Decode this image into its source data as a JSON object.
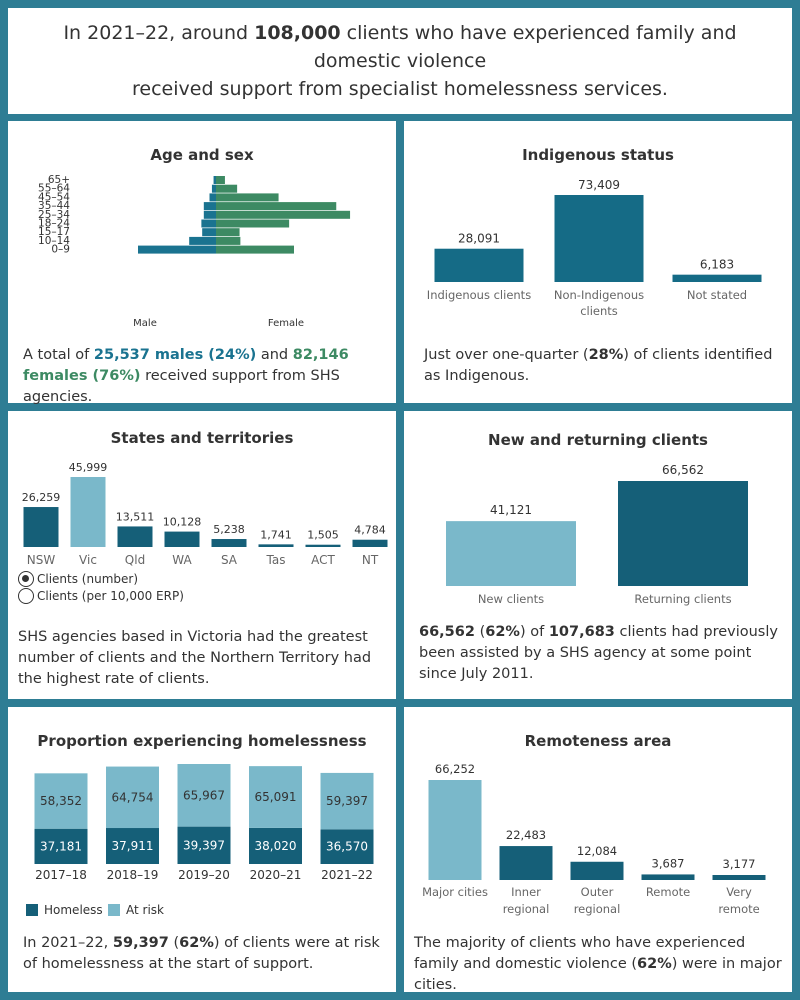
{
  "header": {
    "p1": "In 2021–22, around ",
    "num": "108,000",
    "p2": " clients who have experienced family and domestic violence",
    "line2": "received support from specialist homelessness services."
  },
  "colors": {
    "male": "#1a7390",
    "female": "#3d8a63",
    "primary": "#156b86",
    "dark": "#155f78",
    "light": "#7ab8ca",
    "text": "#333333",
    "grey": "#666666"
  },
  "panels": {
    "age_sex": {
      "title": "Age and sex",
      "caption": {
        "p1": "A total of ",
        "males": "25,537 males (24%)",
        "p2": " and ",
        "females": "82,146 females (76%)",
        "p3": " received support from SHS agencies."
      }
    },
    "indigenous": {
      "title": "Indigenous status",
      "caption": {
        "p1": "Just over one-quarter (",
        "b1": "28%",
        "p2": ") of clients identified as Indigenous."
      }
    },
    "states": {
      "title": "States and territories",
      "radio": {
        "opt1": "Clients (number)",
        "opt2": "Clients (per 10,000 ERP)",
        "selected": "Clients (number)"
      },
      "caption": "SHS agencies based in Victoria had the greatest number of clients and the Northern Territory had the highest rate of clients."
    },
    "new_returning": {
      "title": "New and returning clients",
      "caption": {
        "b1": "66,562",
        "p1": " (",
        "b2": "62%",
        "p2": ") of ",
        "b3": "107,683",
        "p3": " clients had previously been assisted by a SHS agency at some point since July 2011."
      }
    },
    "homelessness": {
      "title": "Proportion experiencing homelessness",
      "legend": {
        "homeless": "Homeless",
        "at_risk": "At risk"
      },
      "caption": {
        "p1": "In 2021–22, ",
        "b1": "59,397",
        "p2": " (",
        "b2": "62%",
        "p3": ") of clients were at risk of homelessness at the start of support."
      }
    },
    "remoteness": {
      "title": "Remoteness area",
      "caption": {
        "p1": "The majority of clients who have experienced family and domestic violence (",
        "b1": "62%",
        "p2": ") were in major cities."
      }
    }
  },
  "chart_data": [
    {
      "type": "bar",
      "orientation": "horizontal",
      "title": "Age and sex",
      "categories": [
        "65+",
        "55–64",
        "45–54",
        "35–44",
        "25–34",
        "18–24",
        "15–17",
        "10–14",
        "0–9"
      ],
      "series": [
        {
          "name": "Male",
          "values": [
            300,
            500,
            800,
            1500,
            1500,
            1800,
            1700,
            3300,
            9600
          ]
        },
        {
          "name": "Female",
          "values": [
            1100,
            2600,
            7700,
            14800,
            16500,
            9000,
            2900,
            3000,
            9600
          ]
        }
      ],
      "xlabel_left": "Male",
      "xlabel_right": "Female"
    },
    {
      "type": "bar",
      "title": "Indigenous status",
      "categories": [
        "Indigenous clients",
        "Non-Indigenous clients",
        "Not stated"
      ],
      "labels": [
        "28,091",
        "73,409",
        "6,183"
      ],
      "values": [
        28091,
        73409,
        6183
      ]
    },
    {
      "type": "bar",
      "title": "States and territories",
      "categories": [
        "NSW",
        "Vic",
        "Qld",
        "WA",
        "SA",
        "Tas",
        "ACT",
        "NT"
      ],
      "labels": [
        "26,259",
        "45,999",
        "13,511",
        "10,128",
        "5,238",
        "1,741",
        "1,505",
        "4,784"
      ],
      "values": [
        26259,
        45999,
        13511,
        10128,
        5238,
        1741,
        1505,
        4784
      ],
      "highlight": "Vic"
    },
    {
      "type": "bar",
      "title": "New and returning clients",
      "categories": [
        "New clients",
        "Returning clients"
      ],
      "labels": [
        "41,121",
        "66,562"
      ],
      "values": [
        41121,
        66562
      ]
    },
    {
      "type": "bar",
      "stacked": true,
      "title": "Proportion experiencing homelessness",
      "categories": [
        "2017–18",
        "2018–19",
        "2019–20",
        "2020–21",
        "2021–22"
      ],
      "series": [
        {
          "name": "Homeless",
          "values": [
            37181,
            37911,
            39397,
            38020,
            36570
          ],
          "labels": [
            "37,181",
            "37,911",
            "39,397",
            "38,020",
            "36,570"
          ]
        },
        {
          "name": "At risk",
          "values": [
            58352,
            64754,
            65967,
            65091,
            59397
          ],
          "labels": [
            "58,352",
            "64,754",
            "65,967",
            "65,091",
            "59,397"
          ]
        }
      ]
    },
    {
      "type": "bar",
      "title": "Remoteness area",
      "categories": [
        "Major cities",
        "Inner regional",
        "Outer regional",
        "Remote",
        "Very remote"
      ],
      "labels": [
        "66,252",
        "22,483",
        "12,084",
        "3,687",
        "3,177"
      ],
      "values": [
        66252,
        22483,
        12084,
        3687,
        3177
      ]
    }
  ]
}
